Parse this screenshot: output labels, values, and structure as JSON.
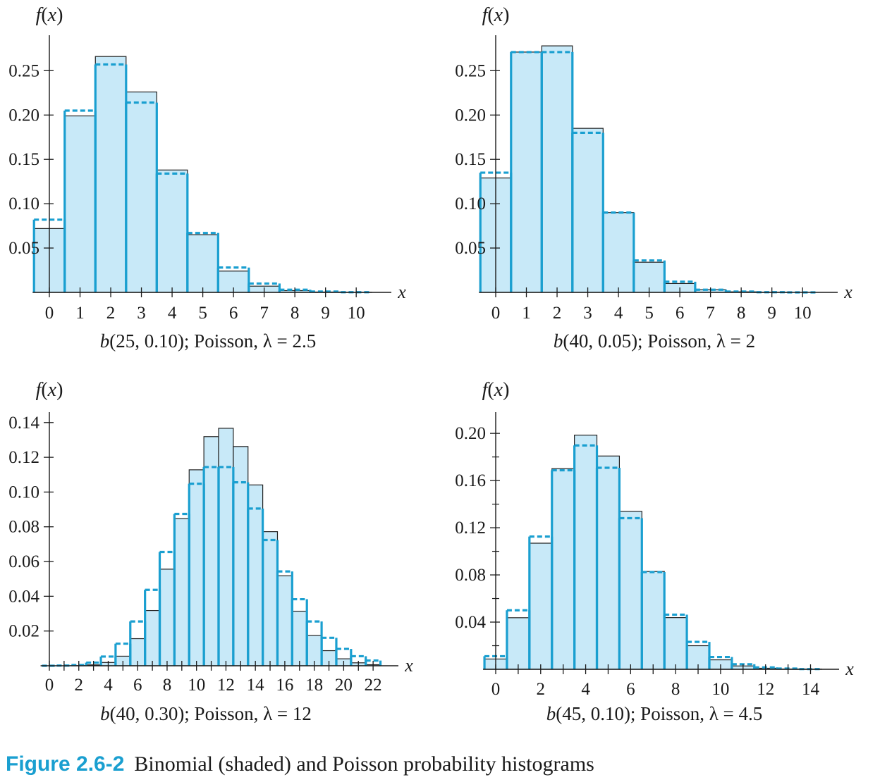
{
  "figure": {
    "label": "Figure 2.6-2",
    "caption": "Binomial (shaded) and Poisson probability histograms"
  },
  "colors": {
    "binomial_fill": "#c8e9f8",
    "poisson_line": "#1a9fd0",
    "axis": "#1a1a1a"
  },
  "chart_data": [
    {
      "type": "bar",
      "title": "b(25, 0.10); Poisson, λ = 2.5",
      "ylabel": "f(x)",
      "xlabel": "x",
      "ylim": [
        0,
        0.29
      ],
      "xlim": [
        -0.5,
        10.8
      ],
      "xticks": [
        0,
        1,
        2,
        3,
        4,
        5,
        6,
        7,
        8,
        9,
        10
      ],
      "yticks": [
        0.05,
        0.1,
        0.15,
        0.2,
        0.25
      ],
      "ytick_labels": [
        "0.05",
        "0.10",
        "0.15",
        "0.20",
        "0.25"
      ],
      "x": [
        0,
        1,
        2,
        3,
        4,
        5,
        6,
        7,
        8,
        9,
        10
      ],
      "series": [
        {
          "name": "Binomial",
          "values": [
            0.072,
            0.199,
            0.266,
            0.226,
            0.138,
            0.065,
            0.024,
            0.007,
            0.002,
            0.0004,
            0.0001
          ]
        },
        {
          "name": "Poisson",
          "values": [
            0.082,
            0.205,
            0.257,
            0.214,
            0.134,
            0.067,
            0.028,
            0.01,
            0.003,
            0.0009,
            0.0002
          ]
        }
      ]
    },
    {
      "type": "bar",
      "title": "b(40, 0.05); Poisson, λ = 2",
      "ylabel": "f(x)",
      "xlabel": "x",
      "ylim": [
        0,
        0.29
      ],
      "xlim": [
        -0.5,
        10.8
      ],
      "xticks": [
        0,
        1,
        2,
        3,
        4,
        5,
        6,
        7,
        8,
        9,
        10
      ],
      "yticks": [
        0.05,
        0.1,
        0.15,
        0.2,
        0.25
      ],
      "ytick_labels": [
        "0.05",
        "0.10",
        "0.15",
        "0.20",
        "0.25"
      ],
      "x": [
        0,
        1,
        2,
        3,
        4,
        5,
        6,
        7,
        8,
        9,
        10
      ],
      "series": [
        {
          "name": "Binomial",
          "values": [
            0.129,
            0.271,
            0.278,
            0.185,
            0.09,
            0.034,
            0.01,
            0.003,
            0.0006,
            0.0001,
            0.0
          ]
        },
        {
          "name": "Poisson",
          "values": [
            0.135,
            0.271,
            0.271,
            0.18,
            0.09,
            0.036,
            0.012,
            0.003,
            0.0009,
            0.0002,
            0.0
          ]
        }
      ]
    },
    {
      "type": "bar",
      "title": "b(40, 0.30); Poisson, λ = 12",
      "ylabel": "f(x)",
      "xlabel": "x",
      "ylim": [
        0,
        0.146
      ],
      "xlim": [
        -0.5,
        23.0
      ],
      "xticks": [
        0,
        2,
        4,
        6,
        8,
        10,
        12,
        14,
        16,
        18,
        20,
        22
      ],
      "yticks": [
        0.02,
        0.04,
        0.06,
        0.08,
        0.1,
        0.12,
        0.14
      ],
      "ytick_labels": [
        "0.02",
        "0.04",
        "0.06",
        "0.08",
        "0.10",
        "0.12",
        "0.14"
      ],
      "x": [
        0,
        1,
        2,
        3,
        4,
        5,
        6,
        7,
        8,
        9,
        10,
        11,
        12,
        13,
        14,
        15,
        16,
        17,
        18,
        19,
        20,
        21,
        22
      ],
      "series": [
        {
          "name": "Binomial",
          "values": [
            0.0,
            0.0,
            0.0001,
            0.0005,
            0.0019,
            0.0055,
            0.0156,
            0.0318,
            0.0556,
            0.0847,
            0.1128,
            0.1319,
            0.1367,
            0.1262,
            0.1041,
            0.0772,
            0.0518,
            0.0314,
            0.0174,
            0.0087,
            0.004,
            0.0017,
            0.0006
          ]
        },
        {
          "name": "Poisson",
          "values": [
            0.0,
            0.0001,
            0.0004,
            0.0018,
            0.0053,
            0.0127,
            0.0255,
            0.0437,
            0.0655,
            0.0874,
            0.1048,
            0.1144,
            0.1144,
            0.1056,
            0.0905,
            0.0724,
            0.0543,
            0.0383,
            0.0255,
            0.0161,
            0.0097,
            0.0055,
            0.003
          ]
        }
      ]
    },
    {
      "type": "bar",
      "title": "b(45, 0.10); Poisson, λ = 4.5",
      "ylabel": "f(x)",
      "xlabel": "x",
      "ylim": [
        0,
        0.218
      ],
      "xlim": [
        -0.5,
        14.8
      ],
      "xticks": [
        0,
        2,
        4,
        6,
        8,
        10,
        12,
        14
      ],
      "yticks": [
        0.04,
        0.08,
        0.12,
        0.16,
        0.2
      ],
      "ytick_labels": [
        "0.04",
        "0.08",
        "0.12",
        "0.16",
        "0.20"
      ],
      "minor_yticks": [
        0.02,
        0.06,
        0.1,
        0.14,
        0.18
      ],
      "x": [
        0,
        1,
        2,
        3,
        4,
        5,
        6,
        7,
        8,
        9,
        10,
        11,
        12,
        13,
        14
      ],
      "series": [
        {
          "name": "Binomial",
          "values": [
            0.0087,
            0.0437,
            0.1069,
            0.1701,
            0.1985,
            0.1808,
            0.1339,
            0.0829,
            0.0438,
            0.02,
            0.008,
            0.0028,
            0.0009,
            0.0002,
            0.0001
          ]
        },
        {
          "name": "Poisson",
          "values": [
            0.0111,
            0.05,
            0.1125,
            0.1687,
            0.1898,
            0.1708,
            0.1281,
            0.0824,
            0.0463,
            0.0232,
            0.0104,
            0.0043,
            0.0016,
            0.0006,
            0.0002
          ]
        }
      ]
    }
  ]
}
